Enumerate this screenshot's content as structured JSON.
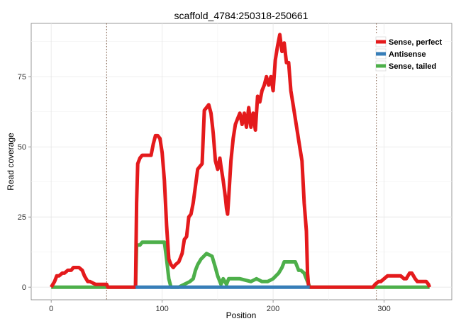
{
  "chart_data": {
    "type": "line",
    "title": "scaffold_4784:250318-250661",
    "xlabel": "Position",
    "ylabel": "Read coverage",
    "xlim": [
      -18,
      361
    ],
    "ylim": [
      -4.5,
      94
    ],
    "x_ticks": [
      0,
      100,
      200,
      300
    ],
    "y_ticks": [
      0,
      25,
      50,
      75
    ],
    "x_tick_labels": [
      "0",
      "100",
      "200",
      "300"
    ],
    "y_tick_labels": [
      "0",
      "25",
      "50",
      "75"
    ],
    "grid": true,
    "legend_position": "top-right",
    "vlines": [
      50,
      293
    ],
    "series": [
      {
        "name": "Sense, perfect",
        "color": "#e41a1c",
        "x": [
          0,
          3,
          5,
          7,
          10,
          12,
          15,
          18,
          20,
          25,
          28,
          30,
          33,
          35,
          40,
          42,
          45,
          48,
          50,
          51,
          76,
          77,
          78,
          80,
          82,
          85,
          90,
          92,
          94,
          96,
          98,
          100,
          102,
          104,
          106,
          108,
          110,
          112,
          115,
          118,
          120,
          122,
          124,
          126,
          128,
          130,
          132,
          134,
          136,
          138,
          140,
          142,
          144,
          146,
          148,
          150,
          152,
          153,
          155,
          157,
          158,
          159,
          160,
          162,
          164,
          166,
          168,
          170,
          172,
          174,
          176,
          178,
          180,
          182,
          184,
          186,
          188,
          190,
          192,
          194,
          196,
          198,
          200,
          202,
          204,
          206,
          208,
          210,
          212,
          214,
          216,
          218,
          220,
          222,
          224,
          226,
          228,
          230,
          231,
          232,
          233,
          290,
          292,
          295,
          297,
          300,
          303,
          305,
          310,
          315,
          318,
          320,
          323,
          325,
          328,
          330,
          335,
          338,
          340,
          341
        ],
        "y": [
          0,
          2,
          4,
          4,
          5,
          5,
          6,
          6,
          7,
          7,
          6,
          4,
          2,
          2,
          1,
          1,
          1,
          1,
          1,
          0,
          0,
          30,
          44,
          46,
          47,
          47,
          47,
          51,
          54,
          54,
          53,
          48,
          38,
          22,
          10,
          8,
          7,
          8,
          9,
          12,
          17,
          18,
          25,
          26,
          30,
          36,
          42,
          43,
          44,
          63,
          64,
          65,
          62,
          55,
          45,
          42,
          46,
          43,
          38,
          32,
          28,
          26,
          32,
          45,
          53,
          58,
          60,
          62,
          58,
          62,
          57,
          64,
          57,
          62,
          56,
          68,
          66,
          70,
          72,
          75,
          72,
          75,
          70,
          81,
          86,
          90,
          84,
          87,
          80,
          80,
          70,
          65,
          60,
          55,
          50,
          45,
          30,
          20,
          5,
          0,
          0,
          0,
          1,
          2,
          2,
          3,
          4,
          4,
          4,
          4,
          3,
          3,
          5,
          5,
          3,
          2,
          2,
          2,
          1,
          0
        ]
      },
      {
        "name": "Antisense",
        "color": "#377eb8",
        "x": [
          76,
          233
        ],
        "y": [
          0,
          0
        ]
      },
      {
        "name": "Sense, tailed",
        "color": "#4daf4a",
        "x": [
          0,
          76,
          77,
          78,
          80,
          82,
          85,
          90,
          95,
          100,
          102,
          104,
          106,
          108,
          110,
          115,
          120,
          125,
          128,
          130,
          132,
          135,
          140,
          145,
          148,
          150,
          153,
          155,
          158,
          160,
          165,
          170,
          180,
          185,
          190,
          195,
          200,
          205,
          208,
          210,
          215,
          220,
          223,
          225,
          228,
          230,
          232,
          233,
          341
        ],
        "y": [
          0,
          0,
          15,
          15,
          15,
          16,
          16,
          16,
          16,
          16,
          16,
          10,
          3,
          0,
          0,
          0,
          1,
          2,
          3,
          6,
          8,
          10,
          12,
          11,
          7,
          4,
          1,
          3,
          1,
          3,
          3,
          3,
          2,
          3,
          2,
          2,
          3,
          5,
          7,
          9,
          9,
          9,
          6,
          6,
          5,
          3,
          1,
          0,
          0
        ]
      }
    ]
  }
}
